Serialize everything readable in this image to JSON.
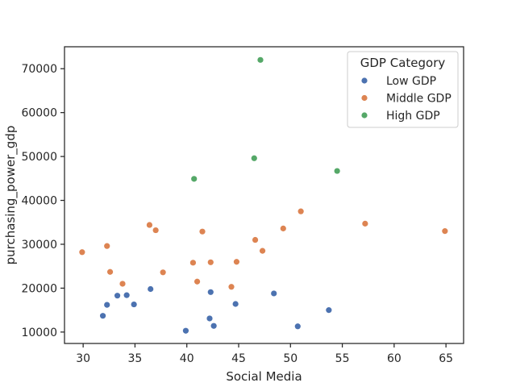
{
  "chart_data": {
    "type": "scatter",
    "xlabel": "Social Media",
    "ylabel": "purchasing_power_gdp",
    "xlim": [
      28.2,
      66.7
    ],
    "ylim": [
      7400,
      75000
    ],
    "xticks": [
      30,
      35,
      40,
      45,
      50,
      55,
      60,
      65
    ],
    "yticks": [
      10000,
      20000,
      30000,
      40000,
      50000,
      60000,
      70000
    ],
    "grid": false,
    "legend": {
      "title": "GDP Category",
      "position": "top-right"
    },
    "series": [
      {
        "name": "Low GDP",
        "color": "#4c72b0",
        "points": [
          [
            31.9,
            13700
          ],
          [
            32.3,
            16200
          ],
          [
            33.3,
            18300
          ],
          [
            34.2,
            18400
          ],
          [
            34.9,
            16300
          ],
          [
            36.5,
            19800
          ],
          [
            39.9,
            10300
          ],
          [
            42.2,
            13100
          ],
          [
            42.3,
            19100
          ],
          [
            42.6,
            11400
          ],
          [
            44.7,
            16400
          ],
          [
            48.4,
            18800
          ],
          [
            50.7,
            11300
          ],
          [
            53.7,
            15000
          ]
        ]
      },
      {
        "name": "Middle GDP",
        "color": "#dd8452",
        "points": [
          [
            29.9,
            28200
          ],
          [
            32.3,
            29600
          ],
          [
            32.6,
            23700
          ],
          [
            33.8,
            21000
          ],
          [
            36.4,
            34400
          ],
          [
            37.0,
            33200
          ],
          [
            37.7,
            23600
          ],
          [
            40.6,
            25800
          ],
          [
            41.0,
            21500
          ],
          [
            41.5,
            32900
          ],
          [
            42.3,
            25900
          ],
          [
            44.3,
            20300
          ],
          [
            44.8,
            26000
          ],
          [
            46.6,
            31000
          ],
          [
            47.3,
            28500
          ],
          [
            49.3,
            33600
          ],
          [
            51.0,
            37500
          ],
          [
            57.2,
            34700
          ],
          [
            64.9,
            33000
          ]
        ]
      },
      {
        "name": "High GDP",
        "color": "#55a868",
        "points": [
          [
            40.7,
            44900
          ],
          [
            46.5,
            49600
          ],
          [
            47.1,
            72000
          ],
          [
            54.5,
            46700
          ]
        ]
      }
    ]
  }
}
